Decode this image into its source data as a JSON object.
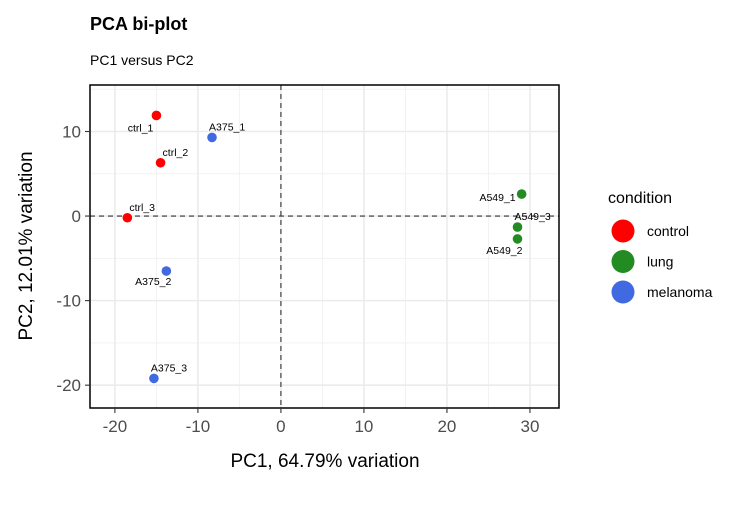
{
  "chart_data": {
    "type": "scatter",
    "title": "PCA bi-plot",
    "subtitle": "PC1 versus PC2",
    "xlabel": "PC1, 64.79% variation",
    "ylabel": "PC2, 12.01% variation",
    "xlim": [
      -23,
      33.5
    ],
    "ylim": [
      -22.7,
      15.5
    ],
    "xticks": [
      -20,
      -10,
      0,
      10,
      20,
      30
    ],
    "yticks": [
      -20,
      -10,
      0,
      10
    ],
    "grid": true,
    "reference_lines": {
      "x": 0,
      "y": 0,
      "style": "dashed"
    },
    "legend": {
      "title": "condition",
      "position": "right",
      "entries": [
        {
          "label": "control",
          "color": "#ff0000"
        },
        {
          "label": "lung",
          "color": "#228b22"
        },
        {
          "label": "melanoma",
          "color": "#4169e1"
        }
      ]
    },
    "points": [
      {
        "label": "ctrl_1",
        "x": -15.0,
        "y": 11.9,
        "group": "control"
      },
      {
        "label": "ctrl_2",
        "x": -14.5,
        "y": 6.3,
        "group": "control"
      },
      {
        "label": "ctrl_3",
        "x": -18.5,
        "y": -0.2,
        "group": "control"
      },
      {
        "label": "A375_1",
        "x": -8.3,
        "y": 9.3,
        "group": "melanoma"
      },
      {
        "label": "A375_2",
        "x": -13.8,
        "y": -6.5,
        "group": "melanoma"
      },
      {
        "label": "A375_3",
        "x": -15.3,
        "y": -19.2,
        "group": "melanoma"
      },
      {
        "label": "A549_1",
        "x": 29.0,
        "y": 2.6,
        "group": "lung"
      },
      {
        "label": "A549_2",
        "x": 28.5,
        "y": -2.7,
        "group": "lung"
      },
      {
        "label": "A549_3",
        "x": 28.5,
        "y": -1.3,
        "group": "lung"
      }
    ]
  }
}
